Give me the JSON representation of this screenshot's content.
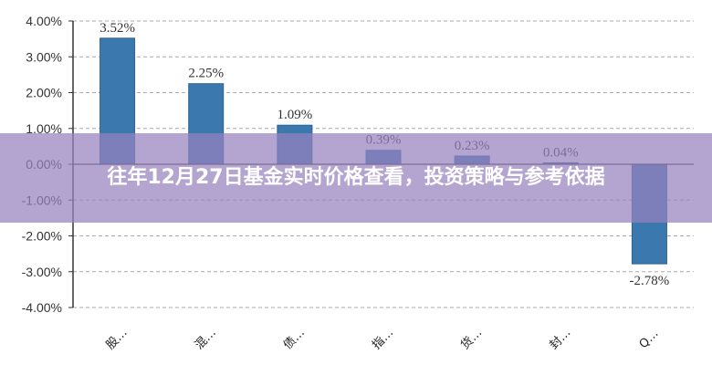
{
  "overlay": {
    "title": "往年12月27日基金实时价格查看，投资策略与参考依据"
  },
  "colors": {
    "bar": "#3A78AE",
    "bar_border": "#2F6390",
    "grid": "#AAAAAA",
    "axis": "#333333",
    "overlay": "#9682BE"
  },
  "chart_data": {
    "type": "bar",
    "title": "",
    "xlabel": "",
    "ylabel": "",
    "categories": [
      "股…",
      "混…",
      "债…",
      "指…",
      "货…",
      "封…",
      "Q…"
    ],
    "values": [
      3.52,
      2.25,
      1.09,
      0.39,
      0.23,
      0.04,
      -2.78
    ],
    "data_labels": [
      "3.52%",
      "2.25%",
      "1.09%",
      "0.39%",
      "0.23%",
      "0.04%",
      "-2.78%"
    ],
    "ylim": [
      -4,
      4
    ],
    "yticks": [
      4,
      3,
      2,
      1,
      0,
      -1,
      -2,
      -3,
      -4
    ],
    "ytick_labels": [
      "4.00%",
      "3.00%",
      "2.00%",
      "1.00%",
      "0.00%",
      "-1.00%",
      "-2.00%",
      "-3.00%",
      "-4.00%"
    ],
    "grid": true,
    "grid_style": "dashed",
    "legend": "none",
    "x_label_rotation": -45
  }
}
